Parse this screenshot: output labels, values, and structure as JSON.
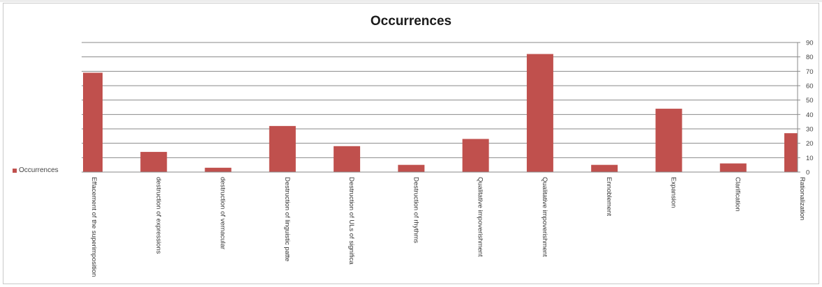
{
  "chart_data": {
    "type": "bar",
    "title": "Occurrences",
    "xlabel": "",
    "ylabel": "",
    "ylim": [
      0,
      90
    ],
    "y_ticks": [
      "0",
      "10",
      "20",
      "30",
      "40",
      "50",
      "60",
      "70",
      "80",
      "90"
    ],
    "grid": true,
    "legend_position": "left",
    "bar_color": "#c0504d",
    "categories": [
      "Effacement of the superimposition",
      "destruction of expressions",
      "destruction of vernacular",
      "Destruction of linguistic patte",
      "Destruction of ULs of significa",
      "Destruction of rhythms",
      "Qualitative impoverishment",
      "Qualitative impoverishment",
      "Ennoblement",
      "Expansion",
      "Clarification",
      "Rationalization"
    ],
    "series": [
      {
        "name": "Occurrences",
        "values": [
          69,
          14,
          3,
          32,
          18,
          5,
          23,
          82,
          5,
          44,
          6,
          27
        ]
      }
    ]
  }
}
